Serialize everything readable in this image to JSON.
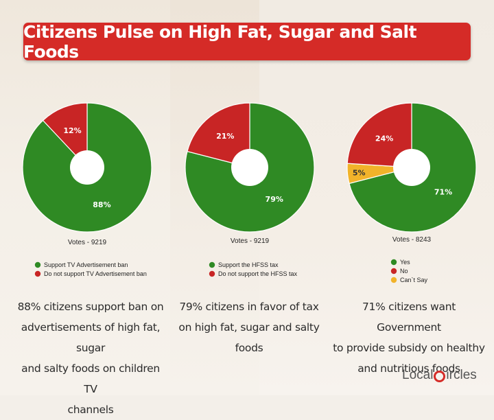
{
  "title": "Citizens Pulse on High Fat, Sugar and Salt Foods",
  "colors": {
    "green": "#2f8a24",
    "red": "#c82525",
    "yellow": "#f1b32a",
    "banner": "#d52b27"
  },
  "chart_data": [
    {
      "type": "pie",
      "donut": true,
      "slices": [
        {
          "label": "Support TV Advertisement ban",
          "value": 88,
          "display": "88%",
          "color": "#2f8a24"
        },
        {
          "label": "Do not support TV Advertisement ban",
          "value": 12,
          "display": "12%",
          "color": "#c82525"
        }
      ],
      "votes": "Votes - 9219",
      "legend": [
        "Support TV Advertisement ban",
        "Do not support TV Advertisement ban"
      ]
    },
    {
      "type": "pie",
      "donut": true,
      "slices": [
        {
          "label": "Support the HFSS tax",
          "value": 79,
          "display": "79%",
          "color": "#2f8a24"
        },
        {
          "label": "Do not support the HFSS tax",
          "value": 21,
          "display": "21%",
          "color": "#c82525"
        }
      ],
      "votes": "Votes - 9219",
      "legend": [
        "Support the HFSS tax",
        "Do not support the HFSS tax"
      ]
    },
    {
      "type": "pie",
      "donut": true,
      "slices": [
        {
          "label": "Yes",
          "value": 71,
          "display": "71%",
          "color": "#2f8a24"
        },
        {
          "label": "No",
          "value": 24,
          "display": "24%",
          "color": "#c82525"
        },
        {
          "label": "Can`t Say",
          "value": 5,
          "display": "5%",
          "color": "#f1b32a"
        }
      ],
      "votes": "Votes - 8243",
      "legend": [
        "Yes",
        "No",
        "Can`t Say"
      ]
    }
  ],
  "captions": [
    [
      "88% citizens support ban on",
      "advertisements of high fat, sugar",
      "and salty foods on children TV",
      "channels"
    ],
    [
      "79% citizens in favor of tax",
      "on high fat, sugar and salty",
      "foods"
    ],
    [
      "71% citizens want Government",
      "to provide  subsidy on healthy",
      "and nutritious foods"
    ]
  ],
  "logo": {
    "left": "Local",
    "right": "ircles"
  }
}
